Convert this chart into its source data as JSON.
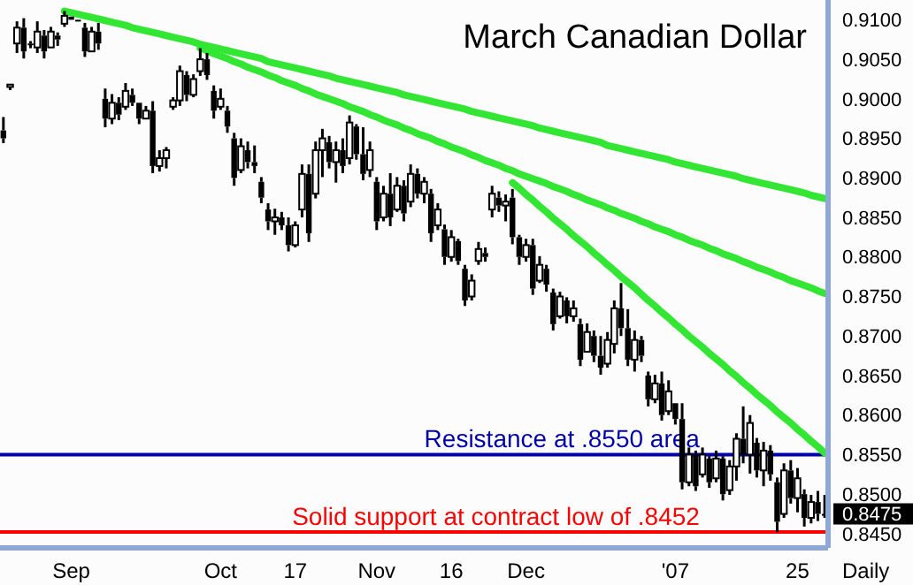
{
  "chart_data": {
    "type": "candlestick",
    "title": "March Canadian Dollar",
    "xlabel": "Daily",
    "color": "#000000",
    "categories": [
      null,
      null,
      null,
      null,
      null,
      null,
      null,
      null,
      null,
      null,
      "Sep",
      null,
      null,
      null,
      null,
      null,
      null,
      null,
      null,
      null,
      null,
      null,
      null,
      null,
      null,
      null,
      null,
      null,
      null,
      null,
      null,
      null,
      "Oct",
      null,
      null,
      null,
      null,
      null,
      null,
      null,
      null,
      null,
      null,
      "17",
      null,
      null,
      null,
      null,
      null,
      null,
      null,
      null,
      null,
      null,
      null,
      "Nov",
      null,
      null,
      null,
      null,
      null,
      null,
      null,
      null,
      null,
      null,
      "16",
      null,
      null,
      null,
      null,
      null,
      null,
      null,
      null,
      null,
      null,
      "Dec",
      null,
      null,
      null,
      null,
      null,
      null,
      null,
      null,
      null,
      null,
      null,
      null,
      null,
      null,
      null,
      null,
      null,
      null,
      null,
      null,
      null,
      "'07",
      null,
      null,
      null,
      null,
      null,
      null,
      null,
      null,
      null,
      null,
      null,
      null,
      null,
      null,
      null,
      null,
      null,
      "25",
      null,
      null,
      null,
      null
    ],
    "ohlc": [
      [
        0.896,
        0.8977,
        0.8944,
        0.895
      ],
      [
        0.9015,
        0.902,
        0.9011,
        0.9018
      ],
      [
        0.907,
        0.9098,
        0.9058,
        0.909
      ],
      [
        0.909,
        0.9102,
        0.9051,
        0.906
      ],
      [
        0.907,
        0.9073,
        0.9064,
        0.9068
      ],
      [
        0.9065,
        0.9098,
        0.9058,
        0.9085
      ],
      [
        0.908,
        0.9087,
        0.9051,
        0.906
      ],
      [
        0.9065,
        0.9091,
        0.9064,
        0.9085
      ],
      [
        0.908,
        0.9084,
        0.9067,
        0.9075
      ],
      [
        0.9095,
        0.9111,
        0.9091,
        0.9105
      ],
      [
        0.9104,
        0.9105,
        0.9098,
        0.91
      ],
      [
        0.91,
        0.9102,
        0.9098,
        0.9099
      ],
      [
        0.909,
        0.9096,
        0.9053,
        0.906
      ],
      [
        0.906,
        0.9091,
        0.9058,
        0.9085
      ],
      [
        0.9085,
        0.9096,
        0.9062,
        0.907
      ],
      [
        0.9,
        0.9013,
        0.8964,
        0.8975
      ],
      [
        0.8975,
        0.9006,
        0.8968,
        0.8995
      ],
      [
        0.8995,
        0.9002,
        0.8973,
        0.898
      ],
      [
        0.899,
        0.902,
        0.8986,
        0.901
      ],
      [
        0.9005,
        0.9013,
        0.8991,
        0.8995
      ],
      [
        0.8995,
        0.8997,
        0.8968,
        0.8975
      ],
      [
        0.8975,
        0.8991,
        0.8973,
        0.8985
      ],
      [
        0.8985,
        0.8997,
        0.8906,
        0.8915
      ],
      [
        0.8915,
        0.8935,
        0.8908,
        0.8925
      ],
      [
        0.8925,
        0.8939,
        0.8912,
        0.8935
      ],
      [
        0.899,
        0.9002,
        0.8986,
        0.8998
      ],
      [
        0.8998,
        0.9042,
        0.8991,
        0.9035
      ],
      [
        0.903,
        0.9035,
        0.8997,
        0.9005
      ],
      [
        0.9005,
        0.9031,
        0.9002,
        0.9025
      ],
      [
        0.9035,
        0.9064,
        0.9029,
        0.905
      ],
      [
        0.905,
        0.9058,
        0.9024,
        0.903
      ],
      [
        0.901,
        0.9017,
        0.8975,
        0.8985
      ],
      [
        0.899,
        0.9013,
        0.8986,
        0.9
      ],
      [
        0.8985,
        0.8991,
        0.8957,
        0.8965
      ],
      [
        0.895,
        0.8957,
        0.889,
        0.89
      ],
      [
        0.891,
        0.895,
        0.8906,
        0.894
      ],
      [
        0.8935,
        0.8946,
        0.8912,
        0.892
      ],
      [
        0.892,
        0.8941,
        0.8906,
        0.8915
      ],
      [
        0.8895,
        0.8901,
        0.8868,
        0.8875
      ],
      [
        0.886,
        0.8868,
        0.8834,
        0.8845
      ],
      [
        0.8845,
        0.8861,
        0.8828,
        0.885
      ],
      [
        0.885,
        0.8857,
        0.8834,
        0.884
      ],
      [
        0.884,
        0.885,
        0.8807,
        0.8815
      ],
      [
        0.8815,
        0.8845,
        0.8812,
        0.884
      ],
      [
        0.886,
        0.8917,
        0.885,
        0.8905
      ],
      [
        0.8905,
        0.8917,
        0.8819,
        0.883
      ],
      [
        0.888,
        0.8946,
        0.8874,
        0.8935
      ],
      [
        0.8935,
        0.8962,
        0.8901,
        0.895
      ],
      [
        0.8945,
        0.8953,
        0.8912,
        0.892
      ],
      [
        0.892,
        0.8946,
        0.8894,
        0.8935
      ],
      [
        0.8935,
        0.895,
        0.8906,
        0.8915
      ],
      [
        0.8925,
        0.8979,
        0.8917,
        0.897
      ],
      [
        0.8965,
        0.8968,
        0.8923,
        0.893
      ],
      [
        0.893,
        0.8964,
        0.8897,
        0.8905
      ],
      [
        0.891,
        0.8946,
        0.8901,
        0.8935
      ],
      [
        0.8895,
        0.8901,
        0.8834,
        0.8845
      ],
      [
        0.885,
        0.889,
        0.8845,
        0.888
      ],
      [
        0.888,
        0.8906,
        0.8839,
        0.885
      ],
      [
        0.886,
        0.8901,
        0.8857,
        0.889
      ],
      [
        0.889,
        0.8897,
        0.8845,
        0.8855
      ],
      [
        0.887,
        0.8917,
        0.8863,
        0.8905
      ],
      [
        0.8905,
        0.8912,
        0.8874,
        0.888
      ],
      [
        0.888,
        0.8901,
        0.8868,
        0.8895
      ],
      [
        0.888,
        0.8886,
        0.8819,
        0.883
      ],
      [
        0.884,
        0.8868,
        0.8834,
        0.886
      ],
      [
        0.8835,
        0.8841,
        0.879,
        0.88
      ],
      [
        0.88,
        0.8834,
        0.8794,
        0.8825
      ],
      [
        0.882,
        0.8823,
        0.879,
        0.8795
      ],
      [
        0.8785,
        0.879,
        0.8738,
        0.8745
      ],
      [
        0.875,
        0.8778,
        0.8745,
        0.877
      ],
      [
        0.8795,
        0.8819,
        0.879,
        0.881
      ],
      [
        0.8805,
        0.8812,
        0.8794,
        0.88
      ],
      [
        0.886,
        0.889,
        0.885,
        0.888
      ],
      [
        0.8875,
        0.8883,
        0.8857,
        0.8865
      ],
      [
        0.8865,
        0.8879,
        0.8845,
        0.887
      ],
      [
        0.8875,
        0.8886,
        0.8816,
        0.8825
      ],
      [
        0.8825,
        0.8828,
        0.879,
        0.88
      ],
      [
        0.88,
        0.8823,
        0.8794,
        0.8815
      ],
      [
        0.8815,
        0.8823,
        0.8752,
        0.876
      ],
      [
        0.877,
        0.8801,
        0.8767,
        0.879
      ],
      [
        0.8785,
        0.879,
        0.8756,
        0.8765
      ],
      [
        0.8755,
        0.876,
        0.8707,
        0.8715
      ],
      [
        0.8725,
        0.8756,
        0.8722,
        0.875
      ],
      [
        0.8745,
        0.8749,
        0.8716,
        0.8725
      ],
      [
        0.8725,
        0.8745,
        0.8718,
        0.8735
      ],
      [
        0.8715,
        0.8722,
        0.8662,
        0.867
      ],
      [
        0.868,
        0.8716,
        0.8678,
        0.8705
      ],
      [
        0.87,
        0.8707,
        0.8667,
        0.8675
      ],
      [
        0.8675,
        0.87,
        0.8651,
        0.866
      ],
      [
        0.8665,
        0.8705,
        0.866,
        0.8695
      ],
      [
        0.869,
        0.8745,
        0.8678,
        0.8735
      ],
      [
        0.8735,
        0.8767,
        0.87,
        0.871
      ],
      [
        0.871,
        0.8734,
        0.8662,
        0.867
      ],
      [
        0.867,
        0.8707,
        0.8655,
        0.8695
      ],
      [
        0.8695,
        0.87,
        0.8667,
        0.8675
      ],
      [
        0.865,
        0.8655,
        0.8611,
        0.862
      ],
      [
        0.862,
        0.8651,
        0.8615,
        0.864
      ],
      [
        0.864,
        0.8655,
        0.8593,
        0.86
      ],
      [
        0.8605,
        0.8644,
        0.86,
        0.863
      ],
      [
        0.8615,
        0.8617,
        0.8588,
        0.8595
      ],
      [
        0.8595,
        0.8615,
        0.8506,
        0.8515
      ],
      [
        0.8515,
        0.8559,
        0.851,
        0.855
      ],
      [
        0.855,
        0.8555,
        0.8504,
        0.851
      ],
      [
        0.8525,
        0.8559,
        0.8521,
        0.855
      ],
      [
        0.8545,
        0.8548,
        0.8508,
        0.8515
      ],
      [
        0.852,
        0.8555,
        0.8515,
        0.8545
      ],
      [
        0.8545,
        0.8548,
        0.8492,
        0.85
      ],
      [
        0.8505,
        0.8543,
        0.8499,
        0.8535
      ],
      [
        0.8535,
        0.8577,
        0.8517,
        0.857
      ],
      [
        0.857,
        0.8611,
        0.8539,
        0.855
      ],
      [
        0.855,
        0.86,
        0.8526,
        0.859
      ],
      [
        0.8565,
        0.8571,
        0.8521,
        0.853
      ],
      [
        0.853,
        0.8566,
        0.851,
        0.8555
      ],
      [
        0.8555,
        0.8562,
        0.8517,
        0.8525
      ],
      [
        0.8515,
        0.8521,
        0.8452,
        0.8465
      ],
      [
        0.8475,
        0.8539,
        0.847,
        0.853
      ],
      [
        0.853,
        0.8543,
        0.8488,
        0.8495
      ],
      [
        0.8495,
        0.8533,
        0.8477,
        0.852
      ],
      [
        0.85,
        0.8506,
        0.8459,
        0.847
      ],
      [
        0.847,
        0.8499,
        0.8463,
        0.849
      ],
      [
        0.849,
        0.8504,
        0.8466,
        0.8475
      ],
      [
        0.8475,
        0.8499,
        0.847,
        0.8475
      ]
    ],
    "series": [
      {
        "type": "line",
        "color": "#33e633",
        "values": [
          null,
          null,
          null,
          null,
          null,
          null,
          null,
          null,
          null,
          0.9111,
          0.9109,
          0.9107,
          0.9105,
          0.9103,
          0.9101,
          0.9099,
          0.9097,
          0.9095,
          0.9093,
          0.909,
          0.9088,
          0.9086,
          0.9084,
          0.9082,
          0.908,
          0.9078,
          0.9076,
          0.9074,
          0.9072,
          0.9069,
          0.9067,
          0.9065,
          0.9063,
          0.9061,
          0.9059,
          0.9057,
          0.9055,
          0.9053,
          0.9051,
          0.9047,
          0.9045,
          0.9043,
          0.9041,
          0.9039,
          0.9037,
          0.9035,
          0.9033,
          0.9031,
          0.9029,
          0.9026,
          0.9024,
          0.9022,
          0.902,
          0.9018,
          0.9016,
          0.9014,
          0.9012,
          0.901,
          0.9008,
          0.9005,
          0.9003,
          0.9001,
          0.8999,
          0.8997,
          0.8995,
          0.8993,
          0.8991,
          0.8989,
          0.8987,
          0.8984,
          0.8982,
          0.898,
          0.8978,
          0.8976,
          0.8974,
          0.8972,
          0.897,
          0.8968,
          0.8966,
          0.8963,
          0.8961,
          0.8959,
          0.8957,
          0.8955,
          0.8953,
          0.8951,
          0.8949,
          0.8947,
          0.8945,
          0.8941,
          0.8939,
          0.8937,
          0.8935,
          0.8933,
          0.8931,
          0.8929,
          0.8927,
          0.8925,
          0.8923,
          0.892,
          0.8918,
          0.8916,
          0.8914,
          0.8912,
          0.891,
          0.8908,
          0.8906,
          0.8904,
          0.8902,
          0.8899,
          0.8897,
          0.8895,
          0.8893,
          0.8891,
          0.8889,
          0.8887,
          0.8885,
          0.8883,
          0.8881,
          0.8878,
          0.8876,
          0.8874
        ]
      },
      {
        "type": "line",
        "color": "#33e633",
        "values": [
          null,
          null,
          null,
          null,
          null,
          null,
          null,
          null,
          null,
          null,
          null,
          null,
          null,
          null,
          null,
          null,
          null,
          null,
          null,
          null,
          null,
          null,
          null,
          null,
          null,
          null,
          null,
          null,
          null,
          0.9064,
          0.9061,
          0.9057,
          0.9054,
          0.9051,
          0.9047,
          0.9044,
          0.904,
          0.9037,
          0.9034,
          0.903,
          0.9027,
          0.9023,
          0.902,
          0.9017,
          0.9013,
          0.901,
          0.9006,
          0.9003,
          0.9,
          0.8997,
          0.8994,
          0.899,
          0.8987,
          0.8984,
          0.898,
          0.8977,
          0.8973,
          0.897,
          0.8967,
          0.8963,
          0.896,
          0.8956,
          0.8953,
          0.895,
          0.8946,
          0.8943,
          0.8939,
          0.8936,
          0.8933,
          0.8929,
          0.8926,
          0.8922,
          0.8919,
          0.8916,
          0.8912,
          0.8909,
          0.8905,
          0.8902,
          0.8899,
          0.8896,
          0.8893,
          0.8889,
          0.8886,
          0.8883,
          0.8879,
          0.8876,
          0.8872,
          0.8869,
          0.8866,
          0.8862,
          0.8859,
          0.8855,
          0.8852,
          0.8849,
          0.8845,
          0.8842,
          0.8838,
          0.8835,
          0.8832,
          0.8828,
          0.8825,
          0.8821,
          0.8818,
          0.8815,
          0.8811,
          0.8808,
          0.8804,
          0.8801,
          0.8798,
          0.8794,
          0.8791,
          0.8787,
          0.8784,
          0.8781,
          0.8777,
          0.8774,
          0.877,
          0.8767,
          0.8764,
          0.8761,
          0.8757,
          0.8754
        ]
      },
      {
        "type": "line",
        "color": "#33e633",
        "values": [
          null,
          null,
          null,
          null,
          null,
          null,
          null,
          null,
          null,
          null,
          null,
          null,
          null,
          null,
          null,
          null,
          null,
          null,
          null,
          null,
          null,
          null,
          null,
          null,
          null,
          null,
          null,
          null,
          null,
          null,
          null,
          null,
          null,
          null,
          null,
          null,
          null,
          null,
          null,
          null,
          null,
          null,
          null,
          null,
          null,
          null,
          null,
          null,
          null,
          null,
          null,
          null,
          null,
          null,
          null,
          null,
          null,
          null,
          null,
          null,
          null,
          null,
          null,
          null,
          null,
          null,
          null,
          null,
          null,
          null,
          null,
          null,
          null,
          null,
          null,
          0.8894,
          0.8887,
          0.8879,
          0.8872,
          0.8864,
          0.8857,
          0.8849,
          0.8842,
          0.8835,
          0.8827,
          0.882,
          0.8813,
          0.8805,
          0.8798,
          0.879,
          0.8783,
          0.8775,
          0.8768,
          0.8761,
          0.8753,
          0.8745,
          0.8738,
          0.873,
          0.8723,
          0.8715,
          0.8708,
          0.87,
          0.8693,
          0.8686,
          0.8678,
          0.8671,
          0.8664,
          0.8656,
          0.8649,
          0.8641,
          0.8634,
          0.8626,
          0.8619,
          0.8612,
          0.8604,
          0.8597,
          0.859,
          0.8582,
          0.8575,
          0.8567,
          0.856,
          0.8552
        ]
      }
    ],
    "ylim": [
      0.8432,
      0.9125
    ],
    "yticks": [
      {
        "value": 0.845,
        "label": "0.8450"
      },
      {
        "value": 0.85,
        "label": "0.8500"
      },
      {
        "value": 0.855,
        "label": "0.8550"
      },
      {
        "value": 0.86,
        "label": "0.8600"
      },
      {
        "value": 0.865,
        "label": "0.8650"
      },
      {
        "value": 0.87,
        "label": "0.8700"
      },
      {
        "value": 0.875,
        "label": "0.8750"
      },
      {
        "value": 0.88,
        "label": "0.8800"
      },
      {
        "value": 0.885,
        "label": "0.8850"
      },
      {
        "value": 0.89,
        "label": "0.8900"
      },
      {
        "value": 0.895,
        "label": "0.8950"
      },
      {
        "value": 0.9,
        "label": "0.9000"
      },
      {
        "value": 0.905,
        "label": "0.9050"
      },
      {
        "value": 0.91,
        "label": "0.9100"
      }
    ],
    "ref_lines": [
      {
        "axis": "y",
        "value": 0.855,
        "label": "Resistance at .8550 area",
        "color": "#0000aa"
      },
      {
        "axis": "y",
        "value": 0.8452,
        "label": "Solid support at contract low of .8452",
        "color": "#ff0000"
      }
    ],
    "annotations": [
      "0.8475"
    ]
  }
}
